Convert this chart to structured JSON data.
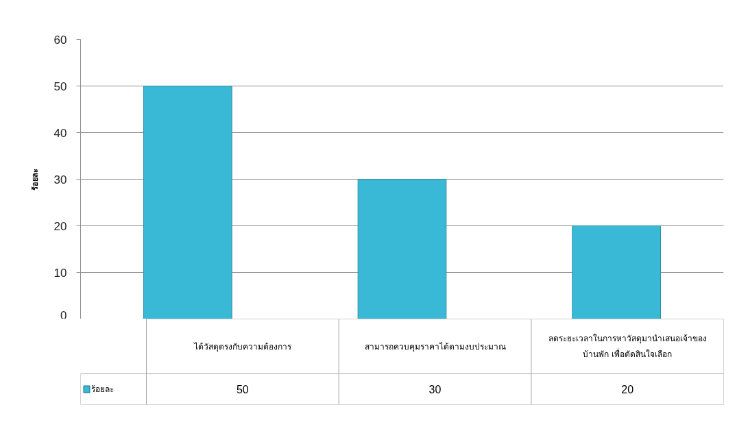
{
  "chart_data": {
    "type": "bar",
    "categories": [
      "ได้วัสดุตรงกับความต้องการ",
      "สามารถควบคุมราคาได้ตามงบประมาณ",
      "ลดระยะเวลาในการหาวัสดุมานำเสนอเจ้าของ\nบ้านพัก เพื่อตัดสินใจเลือก"
    ],
    "series": [
      {
        "name": "ร้อยละ",
        "color": "#3ab9d6",
        "values": [
          50,
          30,
          20
        ]
      }
    ],
    "ylabel": "ร้อยละ",
    "ylim": [
      0,
      60
    ],
    "yticks": [
      0,
      10,
      20,
      30,
      40,
      50,
      60
    ],
    "grid": "y",
    "legend": "bottom left",
    "data_labels": true
  }
}
